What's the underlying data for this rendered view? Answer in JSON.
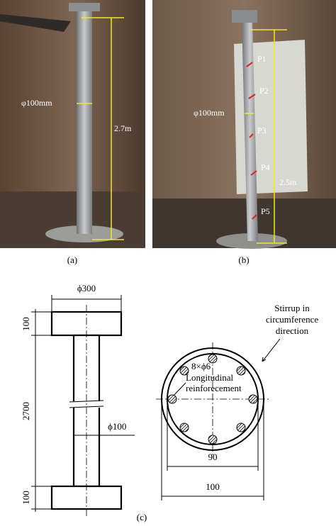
{
  "panel_a": {
    "diameter_label": "φ100mm",
    "height_label": "2.7m",
    "caption": "(a)"
  },
  "panel_b": {
    "points": [
      "P1",
      "P2",
      "P3",
      "P4",
      "P5"
    ],
    "diameter_label": "φ100mm",
    "height_label": "2.5m",
    "caption": "(b)"
  },
  "panel_c": {
    "column": {
      "cap_diameter": "ϕ300",
      "top_cap_height": "100",
      "shaft_length": "2700",
      "bottom_cap_height": "100",
      "shaft_diameter": "ϕ100"
    },
    "section": {
      "rebar_label": "8×ϕ6",
      "rebar_note": [
        "Longitudinal",
        "reinforecement"
      ],
      "stirrup_note": [
        "Stirrup in",
        "circumference",
        "direction"
      ],
      "inner_dimension": "90",
      "outer_dimension": "100"
    },
    "caption": "(c)"
  }
}
